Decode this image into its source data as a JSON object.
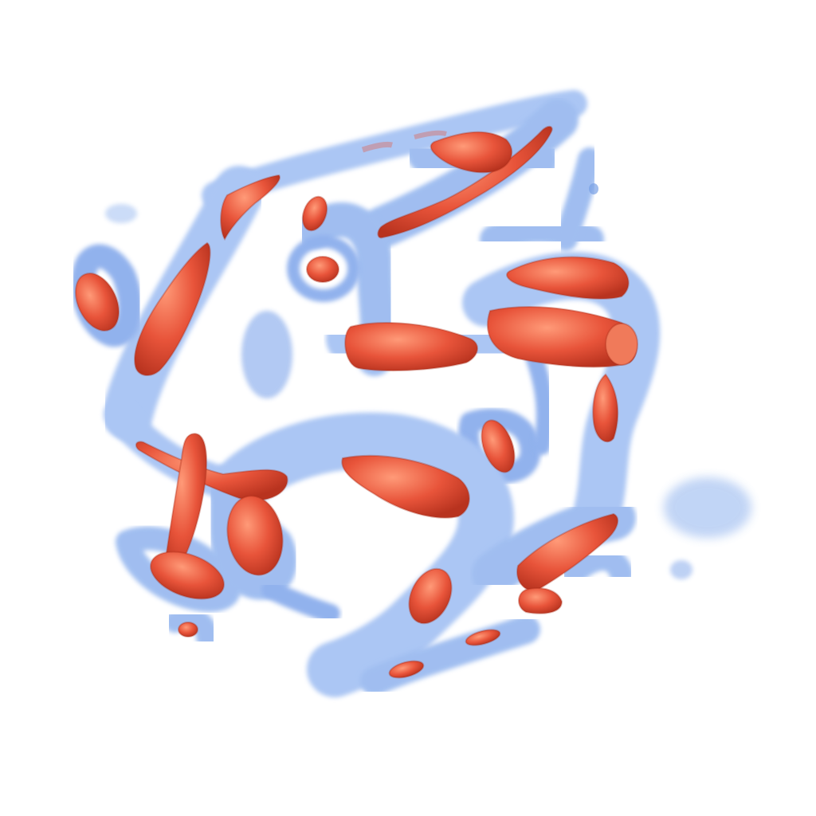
{
  "scene": {
    "background_color": "#ffffff",
    "outer_isosurface_color": "#5f8fe0",
    "outer_isosurface_edge_color": "#3f6fd0",
    "inner_isosurface_color": "#e8543a",
    "inner_isosurface_highlight_color": "#ff9a78"
  }
}
